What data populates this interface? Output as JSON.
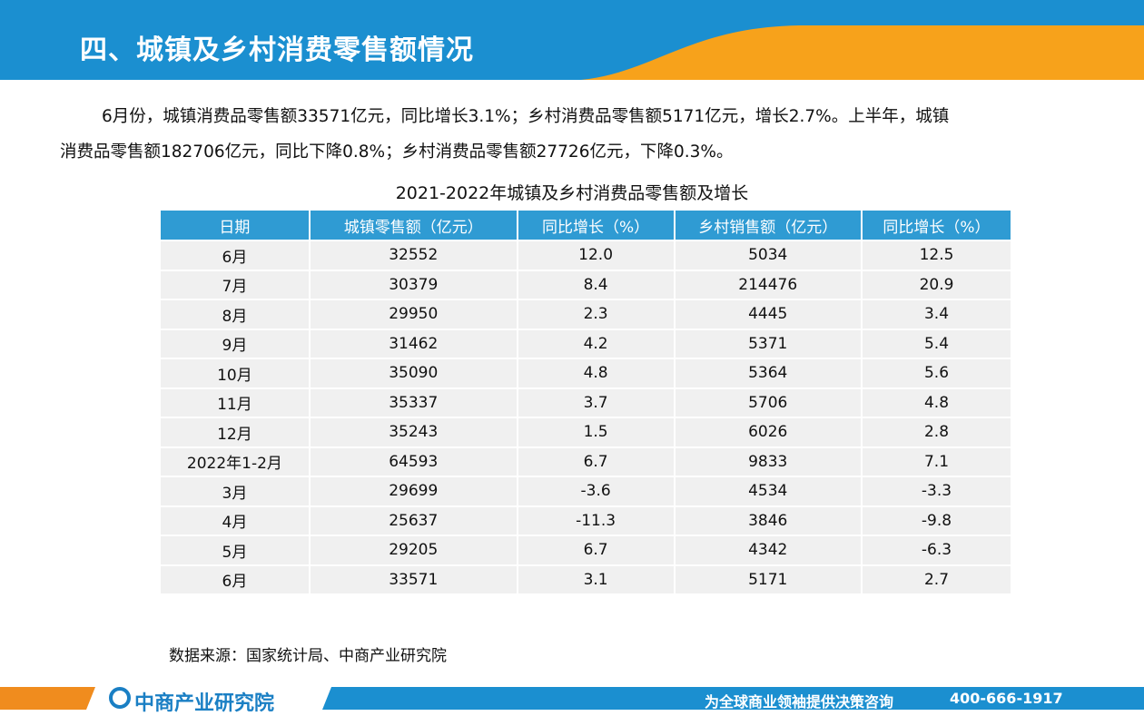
{
  "header": {
    "title": "四、城镇及乡村消费零售额情况"
  },
  "paragraph": {
    "lines": [
      "6月份，城镇消费品零售额33571亿元，同比增长3.1%；乡村消费品零售额5171亿元，增长2.7%。上半年，城镇",
      "消费品零售额182706亿元，同比下降0.8%；乡村消费品零售额27726亿元，下降0.3%。"
    ]
  },
  "table": {
    "title": "2021-2022年城镇及乡村消费品零售额及增长",
    "headers": [
      "日期",
      "城镇零售额（亿元）",
      "同比增长（%）",
      "乡村销售额（亿元）",
      "同比增长（%）"
    ],
    "rows": [
      [
        "6月",
        "32552",
        "12.0",
        "5034",
        "12.5"
      ],
      [
        "7月",
        "30379",
        "8.4",
        "214476",
        "20.9"
      ],
      [
        "8月",
        "29950",
        "2.3",
        "4445",
        "3.4"
      ],
      [
        "9月",
        "31462",
        "4.2",
        "5371",
        "5.4"
      ],
      [
        "10月",
        "35090",
        "4.8",
        "5364",
        "5.6"
      ],
      [
        "11月",
        "35337",
        "3.7",
        "5706",
        "4.8"
      ],
      [
        "12月",
        "35243",
        "1.5",
        "6026",
        "2.8"
      ],
      [
        "2022年1-2月",
        "64593",
        "6.7",
        "9833",
        "7.1"
      ],
      [
        "3月",
        "29699",
        "-3.6",
        "4534",
        "-3.3"
      ],
      [
        "4月",
        "25637",
        "-11.3",
        "3846",
        "-9.8"
      ],
      [
        "5月",
        "29205",
        "6.7",
        "4342",
        "-6.3"
      ],
      [
        "6月",
        "33571",
        "3.1",
        "5171",
        "2.7"
      ]
    ]
  },
  "source": "数据来源：国家统计局、中商产业研究院",
  "footer": {
    "logo": "中商产业研究院",
    "slogan": "为全球商业领袖提供决策咨询",
    "phone": "400-666-1917"
  }
}
